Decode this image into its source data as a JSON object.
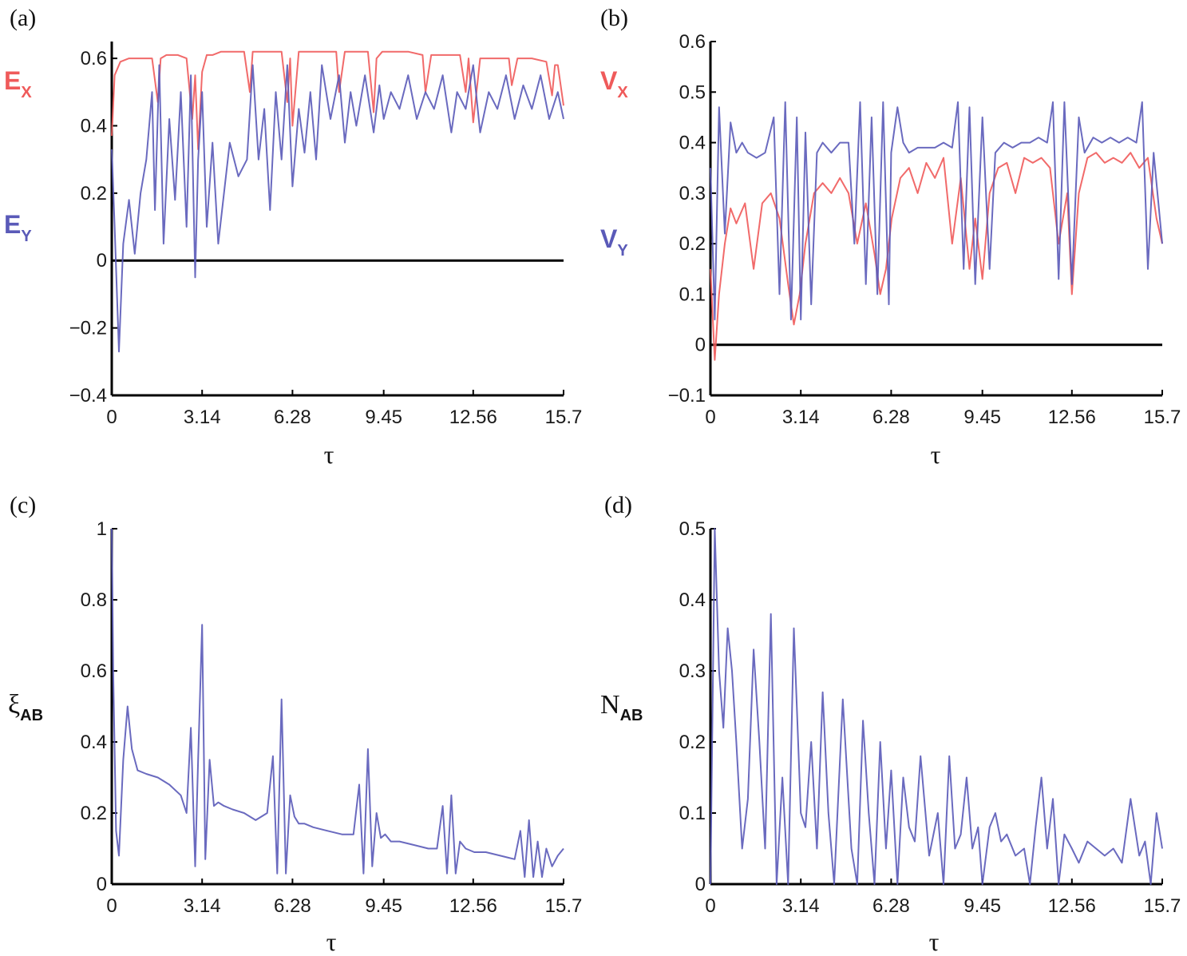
{
  "colors": {
    "red": "#ef5a5a",
    "blue": "#5a5ab8",
    "axis": "#000000"
  },
  "chart_data": [
    {
      "id": "a",
      "panel_label": "(a)",
      "type": "line",
      "xlabel": "τ",
      "xlim": [
        0,
        15.7
      ],
      "ylim": [
        -0.4,
        0.65
      ],
      "xticks": [
        0,
        3.14,
        6.28,
        9.45,
        12.56,
        15.7
      ],
      "xtick_labels": [
        "0",
        "3.14",
        "6.28",
        "9.45",
        "12.56",
        "15.7"
      ],
      "yticks": [
        -0.4,
        -0.2,
        0,
        0.2,
        0.4,
        0.6
      ],
      "ytick_labels": [
        "−0.4",
        "−0.2",
        "0",
        "0.2",
        "0.4",
        "0.6"
      ],
      "hline": 0,
      "legend": [
        {
          "label": "E",
          "sub": "X",
          "color": "#ef5a5a"
        },
        {
          "label": "E",
          "sub": "Y",
          "color": "#5a5ab8"
        }
      ],
      "series": [
        {
          "name": "E_X",
          "color": "#ef5a5a",
          "x": [
            0,
            0.1,
            0.3,
            0.6,
            1.0,
            1.4,
            1.6,
            1.7,
            1.9,
            2.3,
            2.6,
            2.8,
            2.9,
            3.0,
            3.14,
            3.3,
            3.5,
            3.8,
            4.2,
            4.6,
            4.8,
            4.9,
            5.1,
            5.5,
            5.9,
            6.1,
            6.2,
            6.28,
            6.5,
            6.9,
            7.4,
            7.8,
            7.9,
            8.1,
            8.5,
            8.9,
            9.1,
            9.2,
            9.4,
            9.8,
            10.3,
            10.8,
            10.9,
            11.1,
            11.6,
            12.1,
            12.3,
            12.4,
            12.56,
            12.8,
            13.3,
            13.8,
            13.9,
            14.1,
            14.6,
            15.1,
            15.3,
            15.4,
            15.5,
            15.7
          ],
          "y": [
            0.37,
            0.55,
            0.59,
            0.6,
            0.6,
            0.6,
            0.47,
            0.6,
            0.61,
            0.61,
            0.6,
            0.42,
            0.55,
            0.33,
            0.56,
            0.61,
            0.61,
            0.62,
            0.62,
            0.62,
            0.5,
            0.62,
            0.62,
            0.62,
            0.62,
            0.47,
            0.6,
            0.4,
            0.62,
            0.62,
            0.62,
            0.62,
            0.5,
            0.62,
            0.62,
            0.62,
            0.44,
            0.6,
            0.62,
            0.62,
            0.62,
            0.61,
            0.5,
            0.61,
            0.61,
            0.61,
            0.5,
            0.6,
            0.41,
            0.6,
            0.6,
            0.6,
            0.52,
            0.6,
            0.6,
            0.59,
            0.49,
            0.58,
            0.58,
            0.46
          ]
        },
        {
          "name": "E_Y",
          "color": "#5a5ab8",
          "x": [
            0,
            0.1,
            0.25,
            0.4,
            0.6,
            0.8,
            1.0,
            1.2,
            1.4,
            1.5,
            1.65,
            1.8,
            2.0,
            2.2,
            2.4,
            2.6,
            2.75,
            2.9,
            3.0,
            3.14,
            3.3,
            3.5,
            3.7,
            3.9,
            4.1,
            4.4,
            4.7,
            4.9,
            5.1,
            5.3,
            5.5,
            5.7,
            5.9,
            6.1,
            6.28,
            6.5,
            6.7,
            6.9,
            7.1,
            7.3,
            7.6,
            7.9,
            8.1,
            8.3,
            8.5,
            8.8,
            9.1,
            9.3,
            9.45,
            9.7,
            10.0,
            10.3,
            10.6,
            10.9,
            11.2,
            11.5,
            11.8,
            12.0,
            12.3,
            12.56,
            12.8,
            13.1,
            13.4,
            13.7,
            14.0,
            14.3,
            14.6,
            14.9,
            15.2,
            15.5,
            15.7
          ],
          "y": [
            0.33,
            0.1,
            -0.27,
            0.05,
            0.18,
            0.02,
            0.2,
            0.3,
            0.5,
            0.15,
            0.58,
            0.05,
            0.42,
            0.18,
            0.5,
            0.1,
            0.55,
            -0.05,
            0.3,
            0.5,
            0.1,
            0.35,
            0.05,
            0.2,
            0.35,
            0.25,
            0.3,
            0.58,
            0.3,
            0.45,
            0.15,
            0.5,
            0.3,
            0.58,
            0.22,
            0.45,
            0.32,
            0.5,
            0.3,
            0.58,
            0.42,
            0.55,
            0.35,
            0.5,
            0.4,
            0.55,
            0.38,
            0.52,
            0.42,
            0.5,
            0.45,
            0.55,
            0.42,
            0.5,
            0.45,
            0.55,
            0.38,
            0.5,
            0.45,
            0.58,
            0.38,
            0.5,
            0.45,
            0.55,
            0.42,
            0.52,
            0.45,
            0.55,
            0.42,
            0.5,
            0.42
          ]
        }
      ]
    },
    {
      "id": "b",
      "panel_label": "(b)",
      "type": "line",
      "xlabel": "τ",
      "xlim": [
        0,
        15.7
      ],
      "ylim": [
        -0.1,
        0.6
      ],
      "xticks": [
        0,
        3.14,
        6.28,
        9.45,
        12.56,
        15.7
      ],
      "xtick_labels": [
        "0",
        "3.14",
        "6.28",
        "9.45",
        "12.56",
        "15.7"
      ],
      "yticks": [
        -0.1,
        0,
        0.1,
        0.2,
        0.3,
        0.4,
        0.5,
        0.6
      ],
      "ytick_labels": [
        "−0.1",
        "0",
        "0.1",
        "0.2",
        "0.3",
        "0.4",
        "0.5",
        "0.6"
      ],
      "hline": 0,
      "legend": [
        {
          "label": "V",
          "sub": "X",
          "color": "#ef5a5a"
        },
        {
          "label": "V",
          "sub": "Y",
          "color": "#5a5ab8"
        }
      ],
      "series": [
        {
          "name": "V_X",
          "color": "#ef5a5a",
          "x": [
            0,
            0.15,
            0.3,
            0.5,
            0.7,
            0.9,
            1.2,
            1.5,
            1.8,
            2.1,
            2.4,
            2.7,
            2.9,
            3.1,
            3.3,
            3.6,
            3.9,
            4.2,
            4.5,
            4.8,
            5.1,
            5.4,
            5.7,
            5.9,
            6.1,
            6.3,
            6.6,
            6.9,
            7.2,
            7.5,
            7.8,
            8.1,
            8.4,
            8.7,
            9.0,
            9.2,
            9.45,
            9.7,
            10.0,
            10.3,
            10.6,
            10.9,
            11.2,
            11.5,
            11.8,
            12.1,
            12.4,
            12.56,
            12.8,
            13.1,
            13.4,
            13.7,
            14.0,
            14.3,
            14.6,
            14.9,
            15.2,
            15.5,
            15.7
          ],
          "y": [
            0.15,
            -0.03,
            0.1,
            0.2,
            0.27,
            0.24,
            0.28,
            0.15,
            0.28,
            0.3,
            0.25,
            0.12,
            0.04,
            0.1,
            0.2,
            0.3,
            0.32,
            0.3,
            0.33,
            0.3,
            0.2,
            0.28,
            0.18,
            0.1,
            0.15,
            0.25,
            0.33,
            0.35,
            0.3,
            0.36,
            0.33,
            0.37,
            0.2,
            0.33,
            0.15,
            0.25,
            0.13,
            0.3,
            0.35,
            0.36,
            0.3,
            0.37,
            0.36,
            0.37,
            0.35,
            0.2,
            0.3,
            0.1,
            0.3,
            0.37,
            0.38,
            0.36,
            0.37,
            0.36,
            0.38,
            0.35,
            0.37,
            0.25,
            0.2
          ]
        },
        {
          "name": "V_Y",
          "color": "#5a5ab8",
          "x": [
            0,
            0.15,
            0.3,
            0.5,
            0.7,
            0.9,
            1.1,
            1.3,
            1.6,
            1.9,
            2.2,
            2.4,
            2.6,
            2.8,
            3.0,
            3.14,
            3.3,
            3.5,
            3.7,
            3.9,
            4.2,
            4.5,
            4.8,
            5.0,
            5.2,
            5.4,
            5.6,
            5.8,
            6.0,
            6.2,
            6.28,
            6.5,
            6.7,
            6.9,
            7.2,
            7.5,
            7.8,
            8.1,
            8.4,
            8.6,
            8.8,
            9.0,
            9.2,
            9.45,
            9.7,
            9.9,
            10.2,
            10.5,
            10.8,
            11.1,
            11.4,
            11.7,
            11.9,
            12.1,
            12.3,
            12.56,
            12.8,
            13.0,
            13.3,
            13.6,
            13.9,
            14.2,
            14.5,
            14.8,
            15.0,
            15.2,
            15.4,
            15.7
          ],
          "y": [
            0.35,
            0.05,
            0.47,
            0.22,
            0.44,
            0.38,
            0.4,
            0.38,
            0.37,
            0.38,
            0.45,
            0.1,
            0.48,
            0.05,
            0.45,
            0.05,
            0.42,
            0.08,
            0.38,
            0.4,
            0.38,
            0.4,
            0.4,
            0.2,
            0.48,
            0.12,
            0.45,
            0.1,
            0.48,
            0.08,
            0.38,
            0.47,
            0.4,
            0.38,
            0.39,
            0.39,
            0.39,
            0.4,
            0.39,
            0.48,
            0.15,
            0.47,
            0.12,
            0.45,
            0.15,
            0.38,
            0.4,
            0.39,
            0.4,
            0.4,
            0.41,
            0.4,
            0.48,
            0.13,
            0.48,
            0.12,
            0.45,
            0.38,
            0.41,
            0.4,
            0.41,
            0.4,
            0.41,
            0.4,
            0.48,
            0.15,
            0.38,
            0.2
          ]
        }
      ]
    },
    {
      "id": "c",
      "panel_label": "(c)",
      "type": "line",
      "xlabel": "τ",
      "ylabel": "ξ",
      "ylabel_sub": "AB",
      "xlim": [
        0,
        15.7
      ],
      "ylim": [
        0,
        1
      ],
      "xticks": [
        0,
        3.14,
        6.28,
        9.45,
        12.56,
        15.7
      ],
      "xtick_labels": [
        "0",
        "3.14",
        "6.28",
        "9.45",
        "12.56",
        "15.7"
      ],
      "yticks": [
        0,
        0.2,
        0.4,
        0.6,
        0.8,
        1
      ],
      "ytick_labels": [
        "0",
        "0.2",
        "0.4",
        "0.6",
        "0.8",
        "1"
      ],
      "series": [
        {
          "name": "xi_AB",
          "color": "#5a5ab8",
          "x": [
            0,
            0.05,
            0.15,
            0.25,
            0.4,
            0.55,
            0.7,
            0.9,
            1.2,
            1.6,
            2.0,
            2.4,
            2.6,
            2.75,
            2.9,
            3.0,
            3.14,
            3.25,
            3.4,
            3.55,
            3.7,
            3.9,
            4.2,
            4.6,
            5.0,
            5.4,
            5.6,
            5.75,
            5.9,
            6.05,
            6.2,
            6.35,
            6.5,
            6.7,
            7.0,
            7.5,
            8.0,
            8.4,
            8.6,
            8.75,
            8.9,
            9.05,
            9.2,
            9.35,
            9.5,
            9.7,
            10.0,
            10.5,
            11.0,
            11.3,
            11.5,
            11.65,
            11.8,
            11.95,
            12.1,
            12.3,
            12.6,
            13.0,
            13.5,
            14.0,
            14.2,
            14.35,
            14.5,
            14.65,
            14.8,
            14.95,
            15.1,
            15.3,
            15.5,
            15.7
          ],
          "y": [
            1.0,
            0.6,
            0.15,
            0.08,
            0.35,
            0.5,
            0.38,
            0.32,
            0.31,
            0.3,
            0.28,
            0.25,
            0.2,
            0.44,
            0.05,
            0.35,
            0.73,
            0.07,
            0.35,
            0.22,
            0.23,
            0.22,
            0.21,
            0.2,
            0.18,
            0.2,
            0.36,
            0.03,
            0.52,
            0.03,
            0.25,
            0.19,
            0.17,
            0.17,
            0.16,
            0.15,
            0.14,
            0.14,
            0.28,
            0.03,
            0.38,
            0.05,
            0.2,
            0.13,
            0.14,
            0.12,
            0.12,
            0.11,
            0.1,
            0.1,
            0.22,
            0.03,
            0.25,
            0.03,
            0.12,
            0.1,
            0.09,
            0.09,
            0.08,
            0.07,
            0.15,
            0.02,
            0.18,
            0.02,
            0.12,
            0.02,
            0.1,
            0.05,
            0.08,
            0.1
          ]
        }
      ]
    },
    {
      "id": "d",
      "panel_label": "(d)",
      "type": "line",
      "xlabel": "τ",
      "ylabel": "N",
      "ylabel_sub": "AB",
      "xlim": [
        0,
        15.7
      ],
      "ylim": [
        0,
        0.5
      ],
      "xticks": [
        0,
        3.14,
        6.28,
        9.45,
        12.56,
        15.7
      ],
      "xtick_labels": [
        "0",
        "3.14",
        "6.28",
        "9.45",
        "12.56",
        "15.7"
      ],
      "yticks": [
        0,
        0.1,
        0.2,
        0.3,
        0.4,
        0.5
      ],
      "ytick_labels": [
        "0",
        "0.1",
        "0.2",
        "0.3",
        "0.4",
        "0.5"
      ],
      "series": [
        {
          "name": "N_AB",
          "color": "#5a5ab8",
          "x": [
            0,
            0.15,
            0.3,
            0.45,
            0.6,
            0.75,
            0.9,
            1.1,
            1.3,
            1.5,
            1.7,
            1.9,
            2.1,
            2.3,
            2.5,
            2.7,
            2.9,
            3.0,
            3.14,
            3.3,
            3.5,
            3.7,
            3.9,
            4.1,
            4.3,
            4.6,
            4.9,
            5.1,
            5.3,
            5.5,
            5.7,
            5.9,
            6.1,
            6.28,
            6.5,
            6.7,
            6.9,
            7.1,
            7.3,
            7.6,
            7.9,
            8.1,
            8.3,
            8.5,
            8.7,
            8.9,
            9.1,
            9.3,
            9.45,
            9.7,
            9.9,
            10.1,
            10.3,
            10.6,
            10.9,
            11.1,
            11.3,
            11.5,
            11.7,
            11.9,
            12.1,
            12.3,
            12.56,
            12.8,
            13.1,
            13.4,
            13.7,
            14.0,
            14.3,
            14.6,
            14.9,
            15.1,
            15.3,
            15.5,
            15.7
          ],
          "y": [
            0.0,
            0.5,
            0.3,
            0.22,
            0.36,
            0.3,
            0.2,
            0.05,
            0.12,
            0.33,
            0.2,
            0.05,
            0.38,
            0.0,
            0.15,
            0.0,
            0.36,
            0.25,
            0.1,
            0.08,
            0.2,
            0.05,
            0.27,
            0.1,
            0.0,
            0.26,
            0.05,
            0.0,
            0.23,
            0.1,
            0.0,
            0.2,
            0.05,
            0.16,
            0.0,
            0.15,
            0.08,
            0.06,
            0.18,
            0.04,
            0.1,
            0.0,
            0.18,
            0.05,
            0.07,
            0.15,
            0.05,
            0.08,
            0.0,
            0.08,
            0.1,
            0.06,
            0.07,
            0.04,
            0.05,
            0.0,
            0.08,
            0.15,
            0.05,
            0.12,
            0.0,
            0.07,
            0.05,
            0.03,
            0.06,
            0.05,
            0.04,
            0.05,
            0.03,
            0.12,
            0.04,
            0.06,
            0.0,
            0.1,
            0.05
          ]
        }
      ]
    }
  ]
}
